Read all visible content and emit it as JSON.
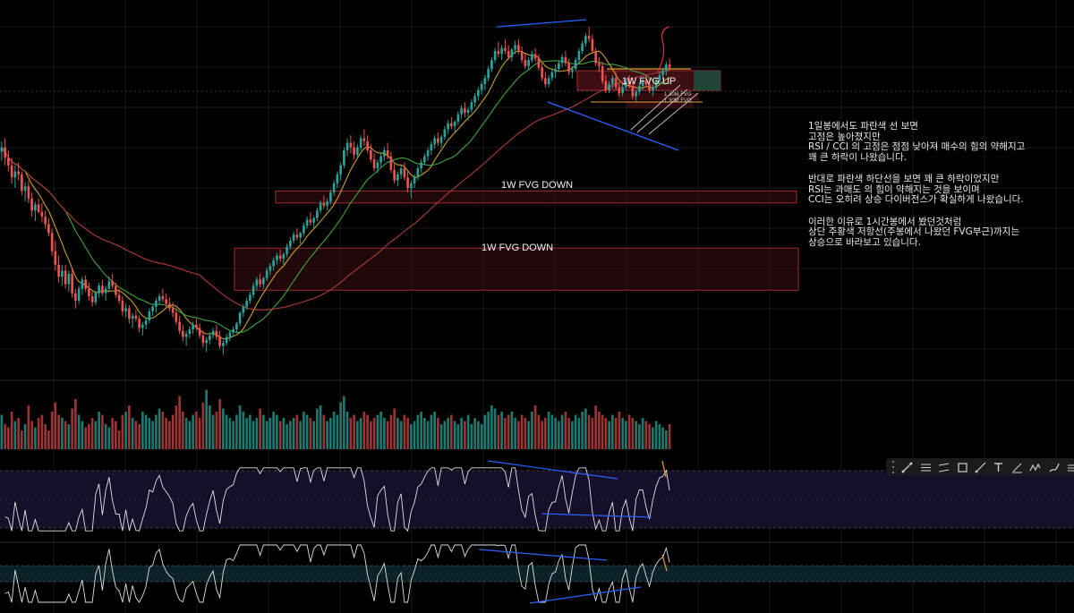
{
  "colors": {
    "background": "#000000",
    "grid": "#1a1a1a",
    "up": "#26a69a",
    "down": "#ef5350",
    "ma_short": "#c9a227",
    "ma_mid": "#3fa53f",
    "ma_long": "#b03a3a",
    "trendline": "#2962ff",
    "fvg_down_fill": "#3a0c10",
    "fvg_down_border": "#9b2a32",
    "fvg_up_fill": "#4a1016",
    "osc_line": "#e0e0e0",
    "rsi_band": "#170f2a",
    "cci_band": "#0b2228",
    "annotation": "#e8e8e8",
    "orange_mark": "#f0a030"
  },
  "chart_data": {
    "type": "candlestick",
    "description_seed": 7,
    "candles": [
      [
        2390,
        2460,
        2330,
        2420
      ],
      [
        2420,
        2480,
        2300,
        2350
      ],
      [
        2350,
        2400,
        2260,
        2300
      ],
      [
        2300,
        2350,
        2180,
        2220
      ],
      [
        2220,
        2300,
        2150,
        2260
      ],
      [
        2260,
        2320,
        2200,
        2240
      ],
      [
        2240,
        2260,
        2100,
        2130
      ],
      [
        2130,
        2190,
        2060,
        2160
      ],
      [
        2160,
        2200,
        2050,
        2080
      ],
      [
        2080,
        2120,
        1960,
        2000
      ],
      [
        2000,
        2060,
        1930,
        2040
      ],
      [
        2040,
        2080,
        1980,
        1990
      ],
      [
        1990,
        2050,
        1920,
        1960
      ],
      [
        1960,
        2000,
        1880,
        1910
      ],
      [
        1910,
        1950,
        1830,
        1850
      ],
      [
        1850,
        1880,
        1700,
        1730
      ],
      [
        1730,
        1800,
        1600,
        1640
      ],
      [
        1640,
        1700,
        1520,
        1560
      ],
      [
        1560,
        1640,
        1500,
        1600
      ],
      [
        1600,
        1640,
        1480,
        1510
      ],
      [
        1510,
        1600,
        1460,
        1580
      ],
      [
        1580,
        1620,
        1420,
        1450
      ],
      [
        1450,
        1480,
        1350,
        1400
      ],
      [
        1400,
        1500,
        1380,
        1480
      ],
      [
        1480,
        1560,
        1440,
        1540
      ],
      [
        1540,
        1570,
        1460,
        1480
      ],
      [
        1480,
        1520,
        1400,
        1430
      ],
      [
        1430,
        1460,
        1360,
        1390
      ],
      [
        1390,
        1470,
        1370,
        1450
      ],
      [
        1450,
        1520,
        1420,
        1500
      ],
      [
        1500,
        1540,
        1430,
        1450
      ],
      [
        1450,
        1500,
        1400,
        1480
      ],
      [
        1480,
        1560,
        1460,
        1530
      ],
      [
        1530,
        1580,
        1480,
        1500
      ],
      [
        1500,
        1520,
        1420,
        1440
      ],
      [
        1440,
        1480,
        1380,
        1400
      ],
      [
        1400,
        1430,
        1300,
        1330
      ],
      [
        1330,
        1380,
        1290,
        1350
      ],
      [
        1350,
        1370,
        1250,
        1280
      ],
      [
        1280,
        1320,
        1220,
        1300
      ],
      [
        1300,
        1340,
        1260,
        1280
      ],
      [
        1280,
        1300,
        1190,
        1220
      ],
      [
        1220,
        1260,
        1170,
        1240
      ],
      [
        1240,
        1290,
        1210,
        1270
      ],
      [
        1270,
        1350,
        1250,
        1330
      ],
      [
        1330,
        1380,
        1300,
        1360
      ],
      [
        1360,
        1420,
        1320,
        1400
      ],
      [
        1400,
        1450,
        1380,
        1430
      ],
      [
        1430,
        1480,
        1390,
        1410
      ],
      [
        1410,
        1450,
        1360,
        1380
      ],
      [
        1380,
        1420,
        1330,
        1350
      ],
      [
        1350,
        1390,
        1290,
        1320
      ],
      [
        1320,
        1350,
        1240,
        1260
      ],
      [
        1260,
        1300,
        1180,
        1200
      ],
      [
        1200,
        1240,
        1130,
        1160
      ],
      [
        1160,
        1200,
        1100,
        1180
      ],
      [
        1180,
        1230,
        1150,
        1210
      ],
      [
        1210,
        1260,
        1180,
        1240
      ],
      [
        1240,
        1280,
        1200,
        1220
      ],
      [
        1220,
        1250,
        1150,
        1170
      ],
      [
        1170,
        1200,
        1090,
        1120
      ],
      [
        1120,
        1160,
        1060,
        1140
      ],
      [
        1140,
        1190,
        1110,
        1170
      ],
      [
        1170,
        1220,
        1150,
        1200
      ],
      [
        1200,
        1240,
        1140,
        1160
      ],
      [
        1160,
        1200,
        1080,
        1100
      ],
      [
        1100,
        1140,
        1040,
        1120
      ],
      [
        1120,
        1180,
        1100,
        1160
      ],
      [
        1160,
        1200,
        1130,
        1190
      ],
      [
        1190,
        1230,
        1160,
        1210
      ],
      [
        1210,
        1260,
        1190,
        1250
      ],
      [
        1250,
        1330,
        1230,
        1320
      ],
      [
        1320,
        1380,
        1290,
        1360
      ],
      [
        1360,
        1420,
        1340,
        1400
      ],
      [
        1400,
        1460,
        1380,
        1440
      ],
      [
        1440,
        1520,
        1420,
        1500
      ],
      [
        1500,
        1560,
        1470,
        1540
      ],
      [
        1540,
        1580,
        1490,
        1510
      ],
      [
        1510,
        1560,
        1480,
        1550
      ],
      [
        1550,
        1620,
        1530,
        1600
      ],
      [
        1600,
        1650,
        1570,
        1630
      ],
      [
        1630,
        1690,
        1600,
        1670
      ],
      [
        1670,
        1720,
        1640,
        1700
      ],
      [
        1700,
        1740,
        1660,
        1680
      ],
      [
        1680,
        1720,
        1640,
        1710
      ],
      [
        1710,
        1780,
        1690,
        1760
      ],
      [
        1760,
        1820,
        1740,
        1800
      ],
      [
        1800,
        1860,
        1780,
        1840
      ],
      [
        1840,
        1880,
        1800,
        1820
      ],
      [
        1820,
        1860,
        1780,
        1850
      ],
      [
        1850,
        1920,
        1830,
        1900
      ],
      [
        1900,
        1960,
        1880,
        1940
      ],
      [
        1940,
        1990,
        1900,
        1920
      ],
      [
        1920,
        1960,
        1880,
        1950
      ],
      [
        1950,
        2020,
        1930,
        2000
      ],
      [
        2000,
        2070,
        1980,
        2050
      ],
      [
        2050,
        2100,
        2010,
        2030
      ],
      [
        2030,
        2080,
        2000,
        2060
      ],
      [
        2060,
        2140,
        2040,
        2120
      ],
      [
        2120,
        2200,
        2100,
        2180
      ],
      [
        2180,
        2260,
        2150,
        2240
      ],
      [
        2240,
        2320,
        2200,
        2300
      ],
      [
        2300,
        2420,
        2280,
        2400
      ],
      [
        2400,
        2480,
        2360,
        2450
      ],
      [
        2450,
        2500,
        2380,
        2420
      ],
      [
        2420,
        2460,
        2340,
        2370
      ],
      [
        2370,
        2440,
        2350,
        2420
      ],
      [
        2420,
        2500,
        2400,
        2480
      ],
      [
        2480,
        2540,
        2430,
        2460
      ],
      [
        2460,
        2500,
        2380,
        2400
      ],
      [
        2400,
        2440,
        2320,
        2340
      ],
      [
        2340,
        2380,
        2260,
        2280
      ],
      [
        2280,
        2340,
        2250,
        2320
      ],
      [
        2320,
        2380,
        2290,
        2360
      ],
      [
        2360,
        2420,
        2330,
        2400
      ],
      [
        2400,
        2450,
        2340,
        2360
      ],
      [
        2360,
        2390,
        2250,
        2270
      ],
      [
        2270,
        2310,
        2180,
        2200
      ],
      [
        2200,
        2260,
        2160,
        2240
      ],
      [
        2240,
        2300,
        2210,
        2280
      ],
      [
        2280,
        2320,
        2200,
        2220
      ],
      [
        2220,
        2260,
        2120,
        2150
      ],
      [
        2150,
        2200,
        2080,
        2180
      ],
      [
        2180,
        2240,
        2150,
        2220
      ],
      [
        2220,
        2300,
        2200,
        2280
      ],
      [
        2280,
        2340,
        2250,
        2320
      ],
      [
        2320,
        2380,
        2300,
        2360
      ],
      [
        2360,
        2420,
        2330,
        2400
      ],
      [
        2400,
        2460,
        2370,
        2440
      ],
      [
        2440,
        2500,
        2410,
        2480
      ],
      [
        2480,
        2520,
        2430,
        2450
      ],
      [
        2450,
        2500,
        2420,
        2490
      ],
      [
        2490,
        2560,
        2470,
        2540
      ],
      [
        2540,
        2600,
        2510,
        2580
      ],
      [
        2580,
        2620,
        2540,
        2560
      ],
      [
        2560,
        2600,
        2520,
        2590
      ],
      [
        2590,
        2660,
        2570,
        2640
      ],
      [
        2640,
        2700,
        2610,
        2680
      ],
      [
        2680,
        2720,
        2620,
        2650
      ],
      [
        2650,
        2690,
        2600,
        2670
      ],
      [
        2670,
        2740,
        2650,
        2720
      ],
      [
        2720,
        2780,
        2690,
        2760
      ],
      [
        2760,
        2820,
        2730,
        2800
      ],
      [
        2800,
        2860,
        2770,
        2840
      ],
      [
        2840,
        2900,
        2800,
        2880
      ],
      [
        2880,
        2960,
        2860,
        2940
      ],
      [
        2940,
        3020,
        2920,
        3000
      ],
      [
        3000,
        3080,
        2980,
        3060
      ],
      [
        3060,
        3120,
        3020,
        3040
      ],
      [
        3040,
        3100,
        3000,
        3080
      ],
      [
        3080,
        3140,
        3040,
        3060
      ],
      [
        3060,
        3100,
        3000,
        3020
      ],
      [
        3020,
        3080,
        2990,
        3070
      ],
      [
        3070,
        3130,
        3040,
        3100
      ],
      [
        3100,
        3140,
        3040,
        3060
      ],
      [
        3060,
        3090,
        2980,
        3000
      ],
      [
        3000,
        3040,
        2940,
        2960
      ],
      [
        2960,
        3020,
        2930,
        3000
      ],
      [
        3000,
        3060,
        2980,
        3040
      ],
      [
        3040,
        3080,
        2990,
        3010
      ],
      [
        3010,
        3040,
        2930,
        2950
      ],
      [
        2950,
        2980,
        2860,
        2880
      ],
      [
        2880,
        2920,
        2820,
        2840
      ],
      [
        2840,
        2900,
        2820,
        2880
      ],
      [
        2880,
        2940,
        2860,
        2920
      ],
      [
        2920,
        2970,
        2880,
        2940
      ],
      [
        2940,
        3000,
        2920,
        2980
      ],
      [
        2980,
        3040,
        2950,
        3020
      ],
      [
        3020,
        3060,
        2960,
        2980
      ],
      [
        2980,
        3010,
        2900,
        2920
      ],
      [
        2920,
        2960,
        2880,
        2940
      ],
      [
        2940,
        3020,
        2920,
        3000
      ],
      [
        3000,
        3080,
        2980,
        3060
      ],
      [
        3060,
        3130,
        3040,
        3110
      ],
      [
        3110,
        3180,
        3090,
        3160
      ],
      [
        3160,
        3220,
        3120,
        3140
      ],
      [
        3140,
        3170,
        3040,
        3060
      ],
      [
        3060,
        3080,
        2960,
        2980
      ],
      [
        2980,
        3020,
        2920,
        2960
      ],
      [
        2960,
        2990,
        2840,
        2860
      ],
      [
        2860,
        2900,
        2780,
        2800
      ],
      [
        2800,
        2860,
        2780,
        2840
      ],
      [
        2840,
        2900,
        2810,
        2880
      ],
      [
        2880,
        2920,
        2800,
        2820
      ],
      [
        2820,
        2850,
        2760,
        2780
      ],
      [
        2780,
        2840,
        2760,
        2820
      ],
      [
        2820,
        2880,
        2800,
        2860
      ],
      [
        2860,
        2900,
        2810,
        2830
      ],
      [
        2830,
        2860,
        2740,
        2760
      ],
      [
        2760,
        2800,
        2720,
        2790
      ],
      [
        2790,
        2850,
        2770,
        2830
      ],
      [
        2830,
        2880,
        2800,
        2860
      ],
      [
        2860,
        2900,
        2820,
        2840
      ],
      [
        2840,
        2880,
        2780,
        2800
      ],
      [
        2800,
        2840,
        2760,
        2820
      ],
      [
        2820,
        2880,
        2800,
        2860
      ],
      [
        2860,
        2920,
        2840,
        2900
      ],
      [
        2900,
        2950,
        2870,
        2930
      ],
      [
        2930,
        2990,
        2900,
        2970
      ],
      [
        2970,
        3010,
        2930,
        2950
      ]
    ],
    "price_range": [
      1020,
      3310
    ],
    "fvg_zones": [
      {
        "label": "1W FVG UP",
        "top": 2980,
        "bottom": 2870,
        "startIndex": 180,
        "endIndex": 210
      },
      {
        "label": "1W FVG DOWN",
        "top": 2130,
        "bottom": 2050,
        "startIndex": 90,
        "endIndex": 260
      },
      {
        "label": "1W FVG DOWN",
        "top": 1750,
        "bottom": 1470,
        "startIndex": 75,
        "endIndex": 260
      }
    ],
    "small_fvg_labels": [
      "1 30M FVG",
      "1 30M FVG"
    ],
    "volume_levels": [
      0.55,
      0.4,
      0.35,
      0.6,
      0.45,
      0.5,
      0.3,
      0.4,
      0.7,
      0.45,
      0.35,
      0.5,
      0.55,
      0.4,
      0.3,
      0.6,
      0.75,
      0.55,
      0.5,
      0.45,
      0.4,
      0.65,
      0.8,
      0.55,
      0.45,
      0.35,
      0.4,
      0.5,
      0.45,
      0.6,
      0.55,
      0.4,
      0.35,
      0.5,
      0.45,
      0.3,
      0.55,
      0.6,
      0.7,
      0.5,
      0.45,
      0.4,
      0.6,
      0.55,
      0.5,
      0.45,
      0.55,
      0.65,
      0.6,
      0.5,
      0.45,
      0.55,
      0.7,
      0.85,
      0.6,
      0.5,
      0.45,
      0.55,
      0.6,
      0.5,
      0.75,
      0.95,
      0.7,
      0.55,
      0.6,
      0.8,
      0.65,
      0.55,
      0.5,
      0.45,
      0.55,
      0.7,
      0.6,
      0.5,
      0.55,
      0.45,
      0.5,
      0.65,
      0.55,
      0.45,
      0.5,
      0.6,
      0.55,
      0.45,
      0.5,
      0.4,
      0.45,
      0.5,
      0.55,
      0.45,
      0.6,
      0.55,
      0.5,
      0.45,
      0.65,
      0.7,
      0.55,
      0.45,
      0.5,
      0.6,
      0.55,
      0.75,
      0.85,
      0.6,
      0.5,
      0.55,
      0.45,
      0.5,
      0.6,
      0.55,
      0.45,
      0.5,
      0.55,
      0.6,
      0.5,
      0.45,
      0.55,
      0.65,
      0.5,
      0.45,
      0.55,
      0.5,
      0.4,
      0.45,
      0.55,
      0.6,
      0.5,
      0.45,
      0.55,
      0.6,
      0.5,
      0.4,
      0.45,
      0.5,
      0.55,
      0.45,
      0.4,
      0.5,
      0.45,
      0.55,
      0.4,
      0.5,
      0.45,
      0.4,
      0.55,
      0.6,
      0.7,
      0.65,
      0.55,
      0.6,
      0.5,
      0.55,
      0.6,
      0.5,
      0.45,
      0.55,
      0.5,
      0.45,
      0.6,
      0.7,
      0.55,
      0.45,
      0.5,
      0.6,
      0.55,
      0.5,
      0.45,
      0.55,
      0.6,
      0.5,
      0.45,
      0.55,
      0.5,
      0.6,
      0.65,
      0.55,
      0.5,
      0.7,
      0.6,
      0.55,
      0.5,
      0.45,
      0.55,
      0.5,
      0.6,
      0.5,
      0.45,
      0.55,
      0.5,
      0.45,
      0.4,
      0.5,
      0.45,
      0.4,
      0.35,
      0.45,
      0.4,
      0.35,
      0.3,
      0.4,
      0.35,
      0.3,
      0.35,
      0.3
    ]
  },
  "annotation": {
    "paragraphs": [
      [
        "1일봉에서도 파란색 선 보면",
        "고점은 높아졌지만",
        "RSI / CCI 의 고점은 점점 낮아져 매수의 힘의 약해지고",
        "꽤 큰 하락이 나왔습니다."
      ],
      [
        "반대로 파란색 하단선을 보면 꽤 큰 하락이었지만",
        "RSI는 과매도 의 힘이 약해지는 것을 보이며",
        "CCI는 오히려 상승 다이버전스가 확실하게 나왔습니다."
      ],
      [
        "이러한 이유로 1시간봉에서 봤던것처럼",
        "상단 주황색 저항선(주봉에서 나왔던 FVG부근)까지는",
        "상승으로 바라보고 있습니다."
      ]
    ]
  },
  "toolbar": {
    "icons": [
      "trend-line-icon",
      "fib-icon",
      "parallel-channel-icon",
      "rectangle-icon",
      "ray-icon",
      "text-icon",
      "measure-icon",
      "pattern-icon",
      "brush-icon",
      "more-icon"
    ]
  }
}
